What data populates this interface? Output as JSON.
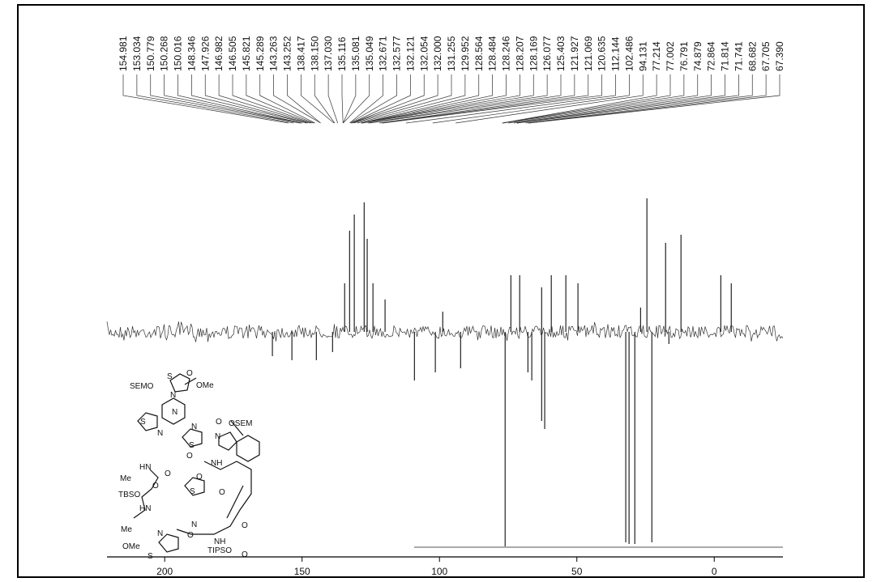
{
  "chart_data": {
    "type": "nmr",
    "peaks": {
      "values": [
        154.981,
        153.034,
        150.779,
        150.268,
        150.016,
        148.346,
        147.926,
        146.982,
        146.505,
        145.821,
        145.289,
        143.263,
        143.252,
        138.417,
        138.15,
        137.03,
        135.116,
        135.081,
        135.049,
        132.671,
        132.577,
        132.121,
        132.054,
        132.0,
        131.255,
        129.952,
        128.564,
        128.484,
        128.246,
        128.207,
        128.169,
        126.077,
        125.403,
        121.927,
        121.069,
        120.635,
        112.144,
        102.486,
        94.131,
        77.214,
        77.002,
        76.791,
        74.879,
        72.864,
        71.814,
        71.741,
        68.682,
        67.705,
        67.39
      ],
      "value_labels": [
        "154.981",
        "153.034",
        "150.779",
        "150.268",
        "150.016",
        "148.346",
        "147.926",
        "146.982",
        "146.505",
        "145.821",
        "145.289",
        "143.263",
        "143.252",
        "138.417",
        "138.150",
        "137.030",
        "135.116",
        "135.081",
        "135.049",
        "132.671",
        "132.577",
        "132.121",
        "132.054",
        "132.000",
        "131.255",
        "129.952",
        "128.564",
        "128.484",
        "128.246",
        "128.207",
        "128.169",
        "126.077",
        "125.403",
        "121.927",
        "121.069",
        "120.635",
        "112.144",
        "102.486",
        "94.131",
        "77.214",
        "77.002",
        "76.791",
        "74.879",
        "72.864",
        "71.814",
        "71.741",
        "68.682",
        "67.705",
        "67.390"
      ]
    },
    "signals": {
      "x": [
        131.0,
        132.7,
        127.4,
        126.3,
        134.5,
        124.2,
        119.8,
        98.8,
        74.0,
        70.8,
        62.8,
        59.3,
        54.0,
        49.6,
        24.5,
        17.7,
        12.1,
        -2.4,
        -6.2,
        26.8,
        76.1,
        67.8,
        66.4,
        62.8,
        61.7,
        101.5,
        92.3,
        32.2,
        31.0,
        28.9,
        22.7,
        16.5,
        160.8,
        153.7,
        144.8,
        109.1,
        138.9
      ],
      "values": [
        145,
        125,
        160,
        115,
        60,
        60,
        40,
        25,
        70,
        70,
        55,
        70,
        70,
        60,
        165,
        110,
        120,
        70,
        60,
        30,
        -265,
        -50,
        -60,
        -110,
        -120,
        -50,
        -45,
        -260,
        -262,
        -262,
        -260,
        -15,
        -30,
        -35,
        -35,
        -60,
        -25
      ]
    },
    "xlim": [
      221,
      -25
    ],
    "xticks": [
      200,
      150,
      100,
      50,
      0
    ],
    "ylim": [
      -278,
      260
    ],
    "color": "#222222"
  },
  "structure": {
    "labels": [
      "O",
      "OMe",
      "S",
      "SEMO",
      "N",
      "N",
      "S",
      "N",
      "N",
      "S",
      "O",
      "OSEM",
      "N",
      "HN",
      "O",
      "NH",
      "O",
      "O",
      "Me",
      "TBSO",
      "O",
      "HN",
      "S",
      "O",
      "Me",
      "OMe",
      "N",
      "S",
      "O",
      "NH",
      "TIPSO",
      "O",
      "O",
      "N"
    ]
  }
}
